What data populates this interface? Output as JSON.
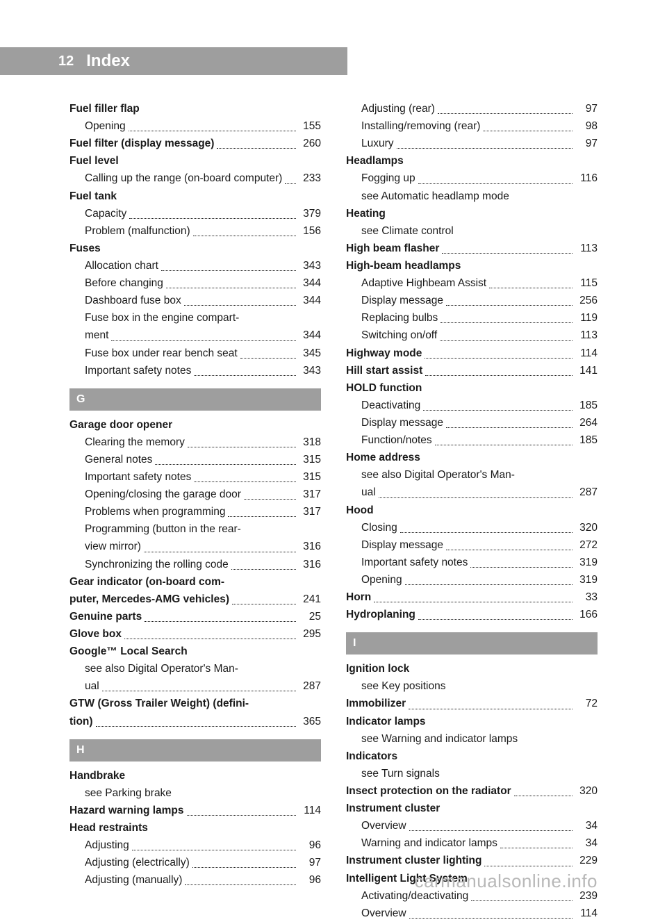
{
  "header": {
    "page_number": "12",
    "title": "Index"
  },
  "footer": "carmanualsonline.info",
  "sections": {
    "letters": {
      "G": "G",
      "H": "H",
      "I": "I"
    }
  },
  "left_col": [
    {
      "bold": true,
      "indent": 0,
      "label": "Fuel filler flap"
    },
    {
      "bold": false,
      "indent": 1,
      "label": "Opening",
      "page": "155"
    },
    {
      "bold": true,
      "indent": 0,
      "label": "Fuel filter (display message)",
      "page": "260"
    },
    {
      "bold": true,
      "indent": 0,
      "label": "Fuel level"
    },
    {
      "bold": false,
      "indent": 1,
      "label": "Calling up the range (on-board computer)",
      "page": "233",
      "wrap": true
    },
    {
      "bold": true,
      "indent": 0,
      "label": "Fuel tank"
    },
    {
      "bold": false,
      "indent": 1,
      "label": "Capacity",
      "page": "379"
    },
    {
      "bold": false,
      "indent": 1,
      "label": "Problem (malfunction)",
      "page": "156"
    },
    {
      "bold": true,
      "indent": 0,
      "label": "Fuses"
    },
    {
      "bold": false,
      "indent": 1,
      "label": "Allocation chart",
      "page": "343"
    },
    {
      "bold": false,
      "indent": 1,
      "label": "Before changing",
      "page": "344"
    },
    {
      "bold": false,
      "indent": 1,
      "label": "Dashboard fuse box",
      "page": "344"
    },
    {
      "bold": false,
      "indent": 1,
      "label": "Fuse box in the engine compartment",
      "page": "344",
      "wrap": true,
      "split": [
        "Fuse box in the engine compart-",
        "ment"
      ]
    },
    {
      "bold": false,
      "indent": 1,
      "label": "Fuse box under rear bench seat",
      "page": "345"
    },
    {
      "bold": false,
      "indent": 1,
      "label": "Important safety notes",
      "page": "343"
    },
    {
      "letter": "G"
    },
    {
      "bold": true,
      "indent": 0,
      "label": "Garage door opener"
    },
    {
      "bold": false,
      "indent": 1,
      "label": "Clearing the memory",
      "page": "318"
    },
    {
      "bold": false,
      "indent": 1,
      "label": "General notes",
      "page": "315"
    },
    {
      "bold": false,
      "indent": 1,
      "label": "Important safety notes",
      "page": "315"
    },
    {
      "bold": false,
      "indent": 1,
      "label": "Opening/closing the garage door",
      "page": "317"
    },
    {
      "bold": false,
      "indent": 1,
      "label": "Problems when programming",
      "page": "317"
    },
    {
      "bold": false,
      "indent": 1,
      "label": "Programming (button in the rear-view mirror)",
      "page": "316",
      "wrap": true,
      "split": [
        "Programming (button in the rear-",
        "view mirror)"
      ]
    },
    {
      "bold": false,
      "indent": 1,
      "label": "Synchronizing the rolling code",
      "page": "316"
    },
    {
      "bold": true,
      "indent": 0,
      "label": "Gear indicator (on-board computer, Mercedes-AMG vehicles)",
      "page": "241",
      "wrap": true,
      "split": [
        "Gear indicator (on-board com-",
        "puter, Mercedes-AMG vehicles)"
      ]
    },
    {
      "bold": true,
      "indent": 0,
      "label": "Genuine parts",
      "page": "25"
    },
    {
      "bold": true,
      "indent": 0,
      "label": "Glove box",
      "page": "295"
    },
    {
      "bold": true,
      "indent": 0,
      "label": "Google™ Local Search"
    },
    {
      "bold": false,
      "indent": 1,
      "label": "see also Digital Operator's Manual",
      "page": "287",
      "wrap": true,
      "split": [
        "see also Digital Operator's Man-",
        "ual"
      ]
    },
    {
      "bold": true,
      "indent": 0,
      "label": "GTW (Gross Trailer Weight) (definition)",
      "page": "365",
      "wrap": true,
      "split": [
        "GTW (Gross Trailer Weight) (defini-",
        "tion)"
      ]
    },
    {
      "letter": "H"
    },
    {
      "bold": true,
      "indent": 0,
      "label": "Handbrake"
    },
    {
      "bold": false,
      "indent": 1,
      "label": "see Parking brake"
    },
    {
      "bold": true,
      "indent": 0,
      "label": "Hazard warning lamps",
      "page": "114"
    },
    {
      "bold": true,
      "indent": 0,
      "label": "Head restraints"
    },
    {
      "bold": false,
      "indent": 1,
      "label": "Adjusting",
      "page": "96"
    },
    {
      "bold": false,
      "indent": 1,
      "label": "Adjusting (electrically)",
      "page": "97"
    },
    {
      "bold": false,
      "indent": 1,
      "label": "Adjusting (manually)",
      "page": "96"
    }
  ],
  "right_col": [
    {
      "bold": false,
      "indent": 1,
      "label": "Adjusting (rear)",
      "page": "97"
    },
    {
      "bold": false,
      "indent": 1,
      "label": "Installing/removing (rear)",
      "page": "98"
    },
    {
      "bold": false,
      "indent": 1,
      "label": "Luxury",
      "page": "97"
    },
    {
      "bold": true,
      "indent": 0,
      "label": "Headlamps"
    },
    {
      "bold": false,
      "indent": 1,
      "label": "Fogging up",
      "page": "116"
    },
    {
      "bold": false,
      "indent": 1,
      "label": "see Automatic headlamp mode"
    },
    {
      "bold": true,
      "indent": 0,
      "label": "Heating"
    },
    {
      "bold": false,
      "indent": 1,
      "label": "see Climate control"
    },
    {
      "bold": true,
      "indent": 0,
      "label": "High beam flasher",
      "page": "113"
    },
    {
      "bold": true,
      "indent": 0,
      "label": "High-beam headlamps"
    },
    {
      "bold": false,
      "indent": 1,
      "label": "Adaptive Highbeam Assist",
      "page": "115"
    },
    {
      "bold": false,
      "indent": 1,
      "label": "Display message",
      "page": "256"
    },
    {
      "bold": false,
      "indent": 1,
      "label": "Replacing bulbs",
      "page": "119"
    },
    {
      "bold": false,
      "indent": 1,
      "label": "Switching on/off",
      "page": "113"
    },
    {
      "bold": true,
      "indent": 0,
      "label": "Highway mode",
      "page": "114"
    },
    {
      "bold": true,
      "indent": 0,
      "label": "Hill start assist",
      "page": "141"
    },
    {
      "bold": true,
      "indent": 0,
      "label": "HOLD function"
    },
    {
      "bold": false,
      "indent": 1,
      "label": "Deactivating",
      "page": "185"
    },
    {
      "bold": false,
      "indent": 1,
      "label": "Display message",
      "page": "264"
    },
    {
      "bold": false,
      "indent": 1,
      "label": "Function/notes",
      "page": "185"
    },
    {
      "bold": true,
      "indent": 0,
      "label": "Home address"
    },
    {
      "bold": false,
      "indent": 1,
      "label": "see also Digital Operator's Manual",
      "page": "287",
      "wrap": true,
      "split": [
        "see also Digital Operator's Man-",
        "ual"
      ]
    },
    {
      "bold": true,
      "indent": 0,
      "label": "Hood"
    },
    {
      "bold": false,
      "indent": 1,
      "label": "Closing",
      "page": "320"
    },
    {
      "bold": false,
      "indent": 1,
      "label": "Display message",
      "page": "272"
    },
    {
      "bold": false,
      "indent": 1,
      "label": "Important safety notes",
      "page": "319"
    },
    {
      "bold": false,
      "indent": 1,
      "label": "Opening",
      "page": "319"
    },
    {
      "bold": true,
      "indent": 0,
      "label": "Horn",
      "page": "33"
    },
    {
      "bold": true,
      "indent": 0,
      "label": "Hydroplaning",
      "page": "166"
    },
    {
      "letter": "I"
    },
    {
      "bold": true,
      "indent": 0,
      "label": "Ignition lock"
    },
    {
      "bold": false,
      "indent": 1,
      "label": "see Key positions"
    },
    {
      "bold": true,
      "indent": 0,
      "label": "Immobilizer",
      "page": "72"
    },
    {
      "bold": true,
      "indent": 0,
      "label": "Indicator lamps"
    },
    {
      "bold": false,
      "indent": 1,
      "label": "see Warning and indicator lamps"
    },
    {
      "bold": true,
      "indent": 0,
      "label": "Indicators"
    },
    {
      "bold": false,
      "indent": 1,
      "label": "see Turn signals"
    },
    {
      "bold": true,
      "indent": 0,
      "label": "Insect protection on the radiator",
      "page": "320"
    },
    {
      "bold": true,
      "indent": 0,
      "label": "Instrument cluster"
    },
    {
      "bold": false,
      "indent": 1,
      "label": "Overview",
      "page": "34"
    },
    {
      "bold": false,
      "indent": 1,
      "label": "Warning and indicator lamps",
      "page": "34"
    },
    {
      "bold": true,
      "indent": 0,
      "label": "Instrument cluster lighting",
      "page": "229"
    },
    {
      "bold": true,
      "indent": 0,
      "label": "Intelligent Light System"
    },
    {
      "bold": false,
      "indent": 1,
      "label": "Activating/deactivating",
      "page": "239"
    },
    {
      "bold": false,
      "indent": 1,
      "label": "Overview",
      "page": "114"
    }
  ]
}
